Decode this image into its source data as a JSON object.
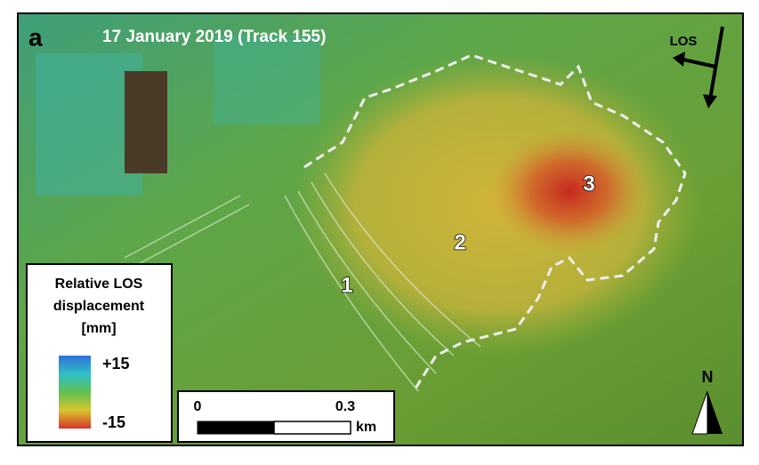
{
  "panel_label": "a",
  "title": "17 January 2019 (Track 155)",
  "los_arrow": {
    "label": "LOS"
  },
  "legend": {
    "title_lines": [
      "Relative LOS",
      "displacement",
      "[mm]"
    ],
    "max_label": "+15",
    "min_label": "-15"
  },
  "scale_bar": {
    "start_label": "0",
    "end_label": "0.3",
    "unit": "km"
  },
  "north_arrow": {
    "label": "N"
  },
  "zones": [
    {
      "label": "1"
    },
    {
      "label": "2"
    },
    {
      "label": "3"
    }
  ]
}
